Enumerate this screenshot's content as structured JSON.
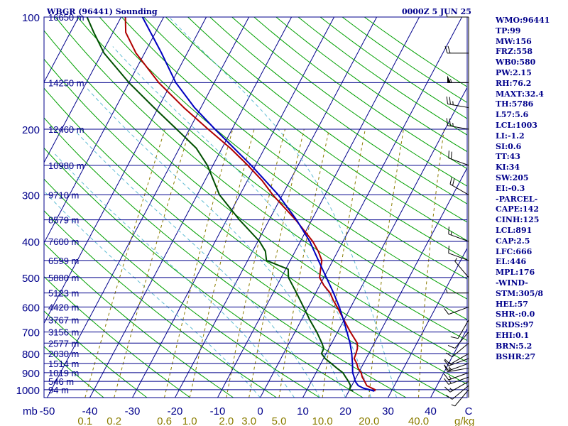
{
  "header": {
    "station": "WBGR (96441) Sounding",
    "time": "0000Z  5 JUN 25"
  },
  "stats": [
    "WMO:96441",
    "TP:99",
    "MW:156",
    "FRZ:558",
    "WB0:580",
    "PW:2.15",
    "RH:76.2",
    "MAXT:32.4",
    "TH:5786",
    "L57:5.6",
    "LCL:1003",
    "LI:-1.2",
    "SI:0.6",
    "TT:43",
    "KI:34",
    "SW:205",
    "EI:-0.3",
    "-PARCEL-",
    "CAPE:142",
    "CINH:125",
    "LCL:891",
    "CAP:2.5",
    "LFC:666",
    "EL:446",
    "MPL:176",
    "-WIND-",
    "STM:305/8",
    "HEL:57",
    "SHR-:0.0",
    "SRDS:97",
    "EHI:0.1",
    "BRN:5.2",
    "BSHR:27"
  ],
  "colors": {
    "isobar": "#00008b",
    "isotherm": "#00008b",
    "dry_adiabat": "#00a000",
    "moist_adiabat": "#5fbcd3",
    "mixing_ratio": "#8b7d00",
    "temperature": "#b00000",
    "dewpoint": "#005000",
    "parcel": "#0000c0"
  },
  "chart_data": {
    "type": "line",
    "subtype": "skew-T log-P",
    "axes": {
      "pressure_label": "mb",
      "temperature_ticks": [
        -50,
        -40,
        -30,
        -20,
        -10,
        0,
        10,
        20,
        30,
        40
      ],
      "temperature_tick_labels": [
        "-50",
        "-40",
        "-30",
        "-20",
        "-10",
        "0",
        "10",
        "20",
        "30",
        "40"
      ],
      "pressure_ticks": [
        100,
        200,
        300,
        400,
        500,
        600,
        700,
        800,
        900,
        1000
      ],
      "pressure_tick_labels": [
        "100",
        "200",
        "300",
        "400",
        "500",
        "600",
        "700",
        "800",
        "900",
        "1000"
      ],
      "pressure_range": [
        100,
        1050
      ],
      "y_scale": "log",
      "mixing_ratio_label": "g/kg",
      "mixing_ratio_labels": [
        {
          "text": "0.1",
          "w": 0.1
        },
        {
          "text": "0.2",
          "w": 0.2
        },
        {
          "text": "0.6",
          "w": 0.6
        },
        {
          "text": "1.0",
          "w": 1.0
        },
        {
          "text": "2.0",
          "w": 2.0
        },
        {
          "text": "3.0",
          "w": 3.0
        },
        {
          "text": "5.0",
          "w": 5.0
        },
        {
          "text": "10.0",
          "w": 10.0
        },
        {
          "text": "20.0",
          "w": 20.0
        },
        {
          "text": "40.0",
          "w": 40.0
        }
      ]
    },
    "height_levels": [
      {
        "p": 100,
        "label": "16650 m"
      },
      {
        "p": 150,
        "label": "14250 m"
      },
      {
        "p": 200,
        "label": "12460 m"
      },
      {
        "p": 250,
        "label": "10980 m"
      },
      {
        "p": 300,
        "label": "9710 m"
      },
      {
        "p": 350,
        "label": "8579 m"
      },
      {
        "p": 400,
        "label": "7600 m"
      },
      {
        "p": 450,
        "label": "6599 m"
      },
      {
        "p": 500,
        "label": "5880 m"
      },
      {
        "p": 550,
        "label": "5123 m"
      },
      {
        "p": 600,
        "label": "4420 m"
      },
      {
        "p": 650,
        "label": "3767 m"
      },
      {
        "p": 700,
        "label": "3156 m"
      },
      {
        "p": 750,
        "label": "2577 m"
      },
      {
        "p": 800,
        "label": "2030 m"
      },
      {
        "p": 850,
        "label": "1514 m"
      },
      {
        "p": 900,
        "label": "1019 m"
      },
      {
        "p": 950,
        "label": "546 m"
      },
      {
        "p": 1000,
        "label": "94 m"
      }
    ],
    "temperature": [
      [
        1009,
        26.0
      ],
      [
        1000,
        26.0
      ],
      [
        990,
        25.0
      ],
      [
        975,
        23.5
      ],
      [
        950,
        22.5
      ],
      [
        925,
        21.4
      ],
      [
        900,
        20.6
      ],
      [
        875,
        19.3
      ],
      [
        850,
        18.4
      ],
      [
        825,
        17.2
      ],
      [
        800,
        17.0
      ],
      [
        775,
        16.7
      ],
      [
        750,
        16.0
      ],
      [
        700,
        13.0
      ],
      [
        650,
        10.0
      ],
      [
        600,
        6.8
      ],
      [
        575,
        5.0
      ],
      [
        550,
        3.4
      ],
      [
        525,
        1.0
      ],
      [
        500,
        -1.0
      ],
      [
        475,
        -1.8
      ],
      [
        450,
        -2.6
      ],
      [
        425,
        -4.6
      ],
      [
        400,
        -7.1
      ],
      [
        350,
        -13.8
      ],
      [
        300,
        -22.3
      ],
      [
        275,
        -26.5
      ],
      [
        250,
        -31.8
      ],
      [
        225,
        -38.0
      ],
      [
        200,
        -45.6
      ],
      [
        175,
        -54.0
      ],
      [
        150,
        -63.0
      ],
      [
        125,
        -72.0
      ],
      [
        110,
        -77.0
      ],
      [
        100,
        -79.0
      ]
    ],
    "dewpoint": [
      [
        1009,
        21.0
      ],
      [
        1000,
        20.0
      ],
      [
        975,
        19.7
      ],
      [
        950,
        18.7
      ],
      [
        925,
        17.5
      ],
      [
        900,
        16.3
      ],
      [
        875,
        14.3
      ],
      [
        850,
        12.4
      ],
      [
        825,
        10.4
      ],
      [
        800,
        8.9
      ],
      [
        775,
        8.8
      ],
      [
        750,
        7.7
      ],
      [
        700,
        5.1
      ],
      [
        650,
        2.0
      ],
      [
        600,
        -1.1
      ],
      [
        550,
        -4.5
      ],
      [
        500,
        -8.3
      ],
      [
        475,
        -9.4
      ],
      [
        450,
        -15.6
      ],
      [
        425,
        -17.0
      ],
      [
        400,
        -19.6
      ],
      [
        350,
        -27.0
      ],
      [
        300,
        -34.8
      ],
      [
        250,
        -41.3
      ],
      [
        225,
        -46.0
      ],
      [
        200,
        -53.0
      ],
      [
        175,
        -61.0
      ],
      [
        150,
        -70.0
      ],
      [
        125,
        -79.5
      ],
      [
        110,
        -84.5
      ],
      [
        100,
        -88.0
      ]
    ],
    "parcel": [
      [
        1009,
        26.0
      ],
      [
        990,
        23.0
      ],
      [
        975,
        21.5
      ],
      [
        950,
        20.3
      ],
      [
        925,
        19.5
      ],
      [
        900,
        18.6
      ],
      [
        850,
        17.4
      ],
      [
        800,
        16.0
      ],
      [
        750,
        14.3
      ],
      [
        700,
        12.2
      ],
      [
        650,
        9.9
      ],
      [
        600,
        7.3
      ],
      [
        550,
        4.2
      ],
      [
        500,
        0.6
      ],
      [
        450,
        -3.4
      ],
      [
        400,
        -7.8
      ],
      [
        350,
        -13.6
      ],
      [
        300,
        -21.0
      ],
      [
        250,
        -31.0
      ],
      [
        200,
        -44.0
      ],
      [
        175,
        -51.5
      ],
      [
        150,
        -59.0
      ],
      [
        125,
        -66.0
      ],
      [
        100,
        -75.0
      ]
    ],
    "wind_barbs": [
      {
        "p": 1000,
        "dir": 220,
        "spd": 5
      },
      {
        "p": 975,
        "dir": 230,
        "spd": 10
      },
      {
        "p": 950,
        "dir": 240,
        "spd": 15
      },
      {
        "p": 925,
        "dir": 250,
        "spd": 15
      },
      {
        "p": 900,
        "dir": 250,
        "spd": 15
      },
      {
        "p": 875,
        "dir": 260,
        "spd": 15
      },
      {
        "p": 850,
        "dir": 250,
        "spd": 15
      },
      {
        "p": 825,
        "dir": 250,
        "spd": 15
      },
      {
        "p": 800,
        "dir": 240,
        "spd": 10
      },
      {
        "p": 750,
        "dir": 230,
        "spd": 10
      },
      {
        "p": 700,
        "dir": 220,
        "spd": 10
      },
      {
        "p": 650,
        "dir": 210,
        "spd": 10
      },
      {
        "p": 600,
        "dir": 250,
        "spd": 10
      },
      {
        "p": 550,
        "dir": 270,
        "spd": 5
      },
      {
        "p": 500,
        "dir": 320,
        "spd": 5
      },
      {
        "p": 450,
        "dir": 290,
        "spd": 10
      },
      {
        "p": 400,
        "dir": 290,
        "spd": 15
      },
      {
        "p": 300,
        "dir": 300,
        "spd": 20
      },
      {
        "p": 250,
        "dir": 290,
        "spd": 20
      },
      {
        "p": 200,
        "dir": 280,
        "spd": 25
      },
      {
        "p": 175,
        "dir": 280,
        "spd": 25
      },
      {
        "p": 150,
        "dir": 270,
        "spd": 55
      },
      {
        "p": 125,
        "dir": 270,
        "spd": 20
      },
      {
        "p": 100,
        "dir": 270,
        "spd": 10
      }
    ]
  }
}
